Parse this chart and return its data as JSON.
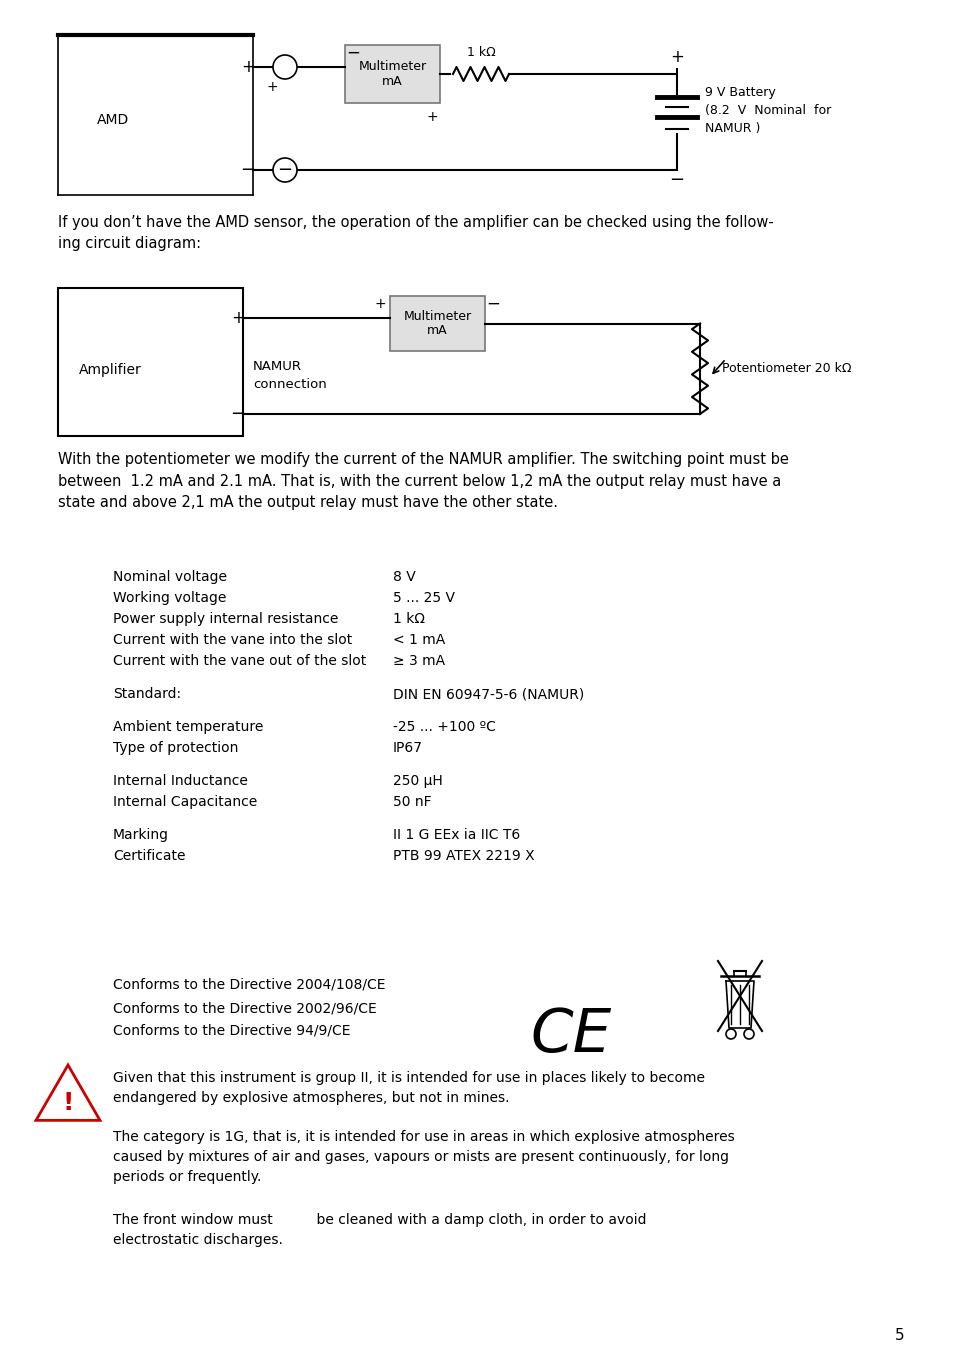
{
  "page_bg": "#ffffff",
  "text_color": "#000000",
  "page_number": "5",
  "circuit1": {
    "box1_label": "AMD",
    "box2_label": "Multimeter\nmA",
    "resistor_label": "1 kΩ",
    "battery_label": "9 V Battery\n(8.2  V  Nominal  for\nNAMUR )"
  },
  "circuit2": {
    "box1_label": "Amplifier",
    "box2_label": "Multimeter\nmA",
    "namur_label": "NAMUR\nconnection",
    "pot_label": "Potentiometer 20 kΩ"
  },
  "para1": "If you don’t have the AMD sensor, the operation of the amplifier can be checked using the follow-\ning circuit diagram:",
  "para2": "With the potentiometer we modify the current of the NAMUR amplifier. The switching point must be\nbetween  1.2 mA and 2.1 mA. That is, with the current below 1,2 mA the output relay must have a\nstate and above 2,1 mA the output relay must have the other state.",
  "specs": [
    [
      "Nominal voltage",
      "8 V"
    ],
    [
      "Working voltage",
      "5 ... 25 V"
    ],
    [
      "Power supply internal resistance",
      "1 kΩ"
    ],
    [
      "Current with the vane into the slot",
      "< 1 mA"
    ],
    [
      "Current with the vane out of the slot",
      "≥ 3 mA"
    ],
    [
      "",
      ""
    ],
    [
      "Standard:",
      "DIN EN 60947-5-6 (NAMUR)"
    ],
    [
      "",
      ""
    ],
    [
      "Ambient temperature",
      "-25 ... +100 ºC"
    ],
    [
      "Type of protection",
      "IP67"
    ],
    [
      "",
      ""
    ],
    [
      "Internal Inductance",
      "250 μH"
    ],
    [
      "Internal Capacitance",
      "50 nF"
    ],
    [
      "",
      ""
    ],
    [
      "Marking",
      "II 1 G EEx ia IIC T6"
    ],
    [
      "Certificate",
      "PTB 99 ATEX 2219 X"
    ]
  ],
  "directives": [
    "Conforms to the Directive 2004/108/CE",
    "Conforms to the Directive 2002/96/CE",
    "Conforms to the Directive 94/9/CE"
  ],
  "warning_text1": "Given that this instrument is group II, it is intended for use in places likely to become\nendangered by explosive atmospheres, but not in mines.",
  "warning_text2": "The category is 1G, that is, it is intended for use in areas in which explosive atmospheres\ncaused by mixtures of air and gases, vapours or mists are present continuously, for long\nperiods or frequently.",
  "last_text": "The front window must          be cleaned with a damp cloth, in order to avoid\nelectrostatic discharges."
}
